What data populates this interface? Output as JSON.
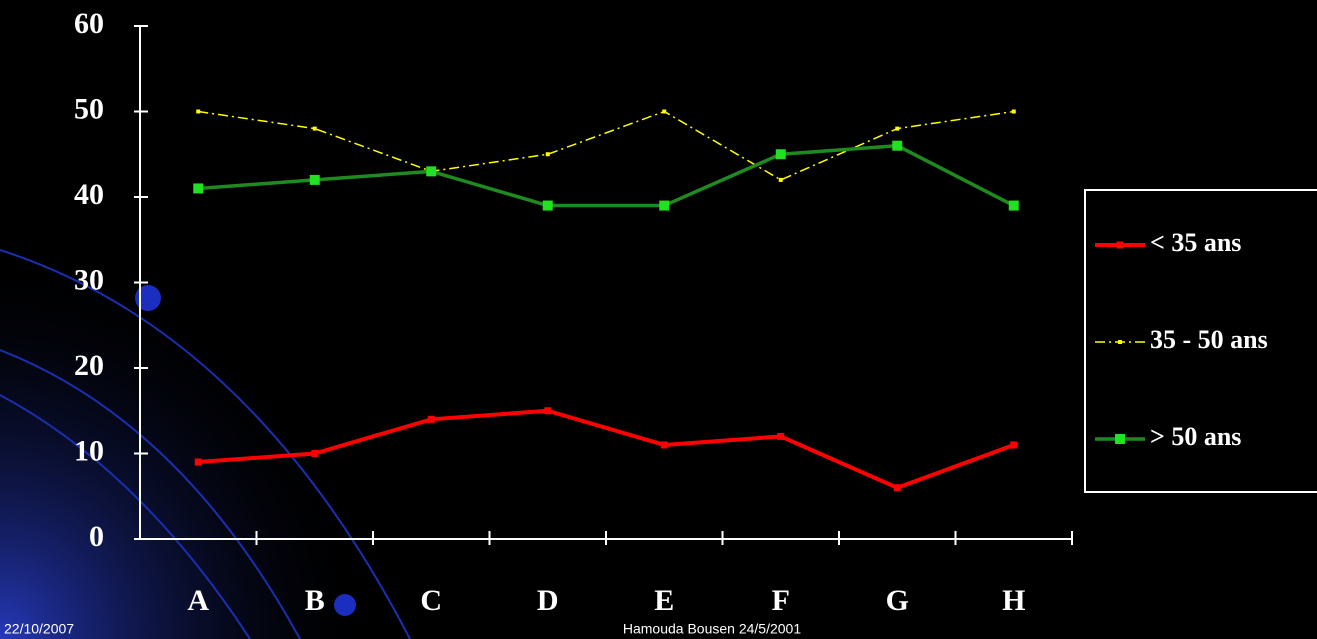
{
  "chart_data": {
    "type": "line",
    "categories": [
      "A",
      "B",
      "C",
      "D",
      "E",
      "F",
      "G",
      "H"
    ],
    "series": [
      {
        "name": "< 35 ans",
        "color": "#ff0000",
        "marker_color": "#ff0000",
        "values": [
          9,
          10,
          14,
          15,
          11,
          12,
          6,
          11
        ]
      },
      {
        "name": "35 - 50 ans",
        "color": "#ffff00",
        "marker_color": "#ffff00",
        "values": [
          50,
          48,
          43,
          45,
          50,
          42,
          48,
          50
        ]
      },
      {
        "name": "> 50 ans",
        "color": "#1f8a1f",
        "marker_color": "#22e022",
        "values": [
          41,
          42,
          43,
          39,
          39,
          45,
          46,
          39
        ]
      }
    ],
    "ylim": [
      0,
      60
    ],
    "yticks": [
      0,
      10,
      20,
      30,
      40,
      50,
      60
    ],
    "grid": false,
    "legend": "right"
  },
  "footer": {
    "date": "22/10/2007",
    "author": "Hamouda Bousen 24/5/2001"
  }
}
